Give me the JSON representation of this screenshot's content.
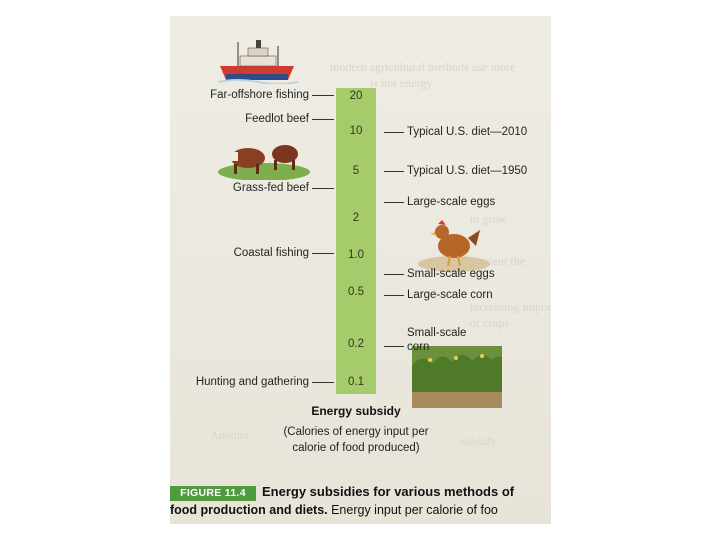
{
  "figure": {
    "badge": "FIGURE 11.4",
    "title": "Energy subsidies for various methods of",
    "line2_bold": "food production and diets.",
    "line2_rest": " Energy input per calorie of foo"
  },
  "axis": {
    "title": "Energy subsidy",
    "subtitle_line1": "(Calories of energy input per",
    "subtitle_line2": "calorie of food produced)"
  },
  "scale": {
    "values": [
      "20",
      "10",
      "5",
      "2",
      "1.0",
      "0.5",
      "0.2",
      "0.1"
    ]
  },
  "left_labels": {
    "far_offshore_fishing": "Far-offshore fishing",
    "feedlot_beef": "Feedlot beef",
    "grass_fed_beef": "Grass-fed beef",
    "coastal_fishing": "Coastal fishing",
    "hunting_gathering": "Hunting and gathering"
  },
  "right_labels": {
    "us_diet_2010": "Typical U.S. diet—2010",
    "us_diet_1950": "Typical U.S. diet—1950",
    "large_scale_eggs": "Large-scale eggs",
    "small_scale_eggs": "Small-scale eggs",
    "large_scale_corn": "Large-scale corn",
    "small_scale_corn_1": "Small-scale",
    "small_scale_corn_2": "corn"
  },
  "illustrations": {
    "ship": "ship-icon",
    "cattle": "cattle-icon",
    "chicken": "chicken-icon",
    "corn_field": "corn-field-icon"
  }
}
